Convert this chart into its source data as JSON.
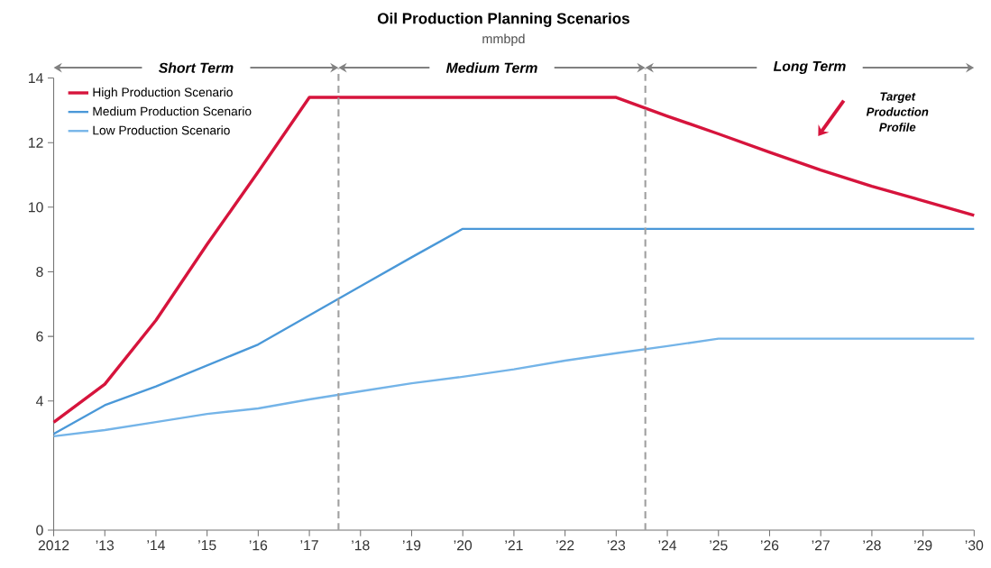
{
  "chart_data": {
    "type": "line",
    "title": "Oil Production Planning Scenarios",
    "subtitle": "mmbpd",
    "x": [
      2012,
      2013,
      2014,
      2015,
      2016,
      2017,
      2018,
      2019,
      2020,
      2021,
      2022,
      2023,
      2024,
      2025,
      2026,
      2027,
      2028,
      2029,
      2030
    ],
    "series": [
      {
        "name": "High Production Scenario",
        "color": "#d6143c",
        "values": [
          3.34,
          4.52,
          6.5,
          8.85,
          11.1,
          13.4,
          13.4,
          13.4,
          13.4,
          13.4,
          13.4,
          13.4,
          12.82,
          12.27,
          11.7,
          11.15,
          10.65,
          10.2,
          9.75
        ]
      },
      {
        "name": "Medium Production Scenario",
        "color": "#4a98d8",
        "values": [
          2.98,
          3.87,
          4.45,
          5.1,
          5.75,
          6.65,
          7.55,
          8.45,
          9.33,
          9.33,
          9.33,
          9.33,
          9.33,
          9.33,
          9.33,
          9.33,
          9.33,
          9.33,
          9.33
        ]
      },
      {
        "name": "Low Production Scenario",
        "color": "#74b4e8",
        "values": [
          2.91,
          3.1,
          3.35,
          3.6,
          3.77,
          4.05,
          4.3,
          4.55,
          4.75,
          4.98,
          5.25,
          5.48,
          5.7,
          5.93,
          5.93,
          5.93,
          5.93,
          5.93,
          5.93
        ]
      }
    ],
    "xlim": [
      2012,
      2030
    ],
    "xticks": [
      2012,
      {
        "value": 2013,
        "label": "’13"
      },
      {
        "value": 2014,
        "label": "’14"
      },
      {
        "value": 2015,
        "label": "’15"
      },
      {
        "value": 2016,
        "label": "’16"
      },
      {
        "value": 2017,
        "label": "’17"
      },
      {
        "value": 2018,
        "label": "’18"
      },
      {
        "value": 2019,
        "label": "’19"
      },
      {
        "value": 2020,
        "label": "’20"
      },
      {
        "value": 2021,
        "label": "’21"
      },
      {
        "value": 2022,
        "label": "’22"
      },
      {
        "value": 2023,
        "label": "’23"
      },
      {
        "value": 2024,
        "label": "’24"
      },
      {
        "value": 2025,
        "label": "’25"
      },
      {
        "value": 2026,
        "label": "’26"
      },
      {
        "value": 2027,
        "label": "’27"
      },
      {
        "value": 2028,
        "label": "’28"
      },
      {
        "value": 2029,
        "label": "’29"
      },
      {
        "value": 2030,
        "label": "’30"
      }
    ],
    "ylim": [
      0,
      14
    ],
    "yticks": [
      0,
      4,
      6,
      8,
      10,
      12,
      14
    ],
    "ref_lines": [
      {
        "axis": "x",
        "value": 2017.57,
        "color": "#a0a0a0",
        "line_style": "dashed"
      },
      {
        "axis": "x",
        "value": 2023.57,
        "color": "#a0a0a0",
        "line_style": "dashed"
      }
    ],
    "annotations": [
      "Short Term",
      "Medium Term",
      "Long Term",
      "Target Production Profile"
    ],
    "legend": "top left",
    "grid": false,
    "marker": "none",
    "line_style": "solid"
  }
}
